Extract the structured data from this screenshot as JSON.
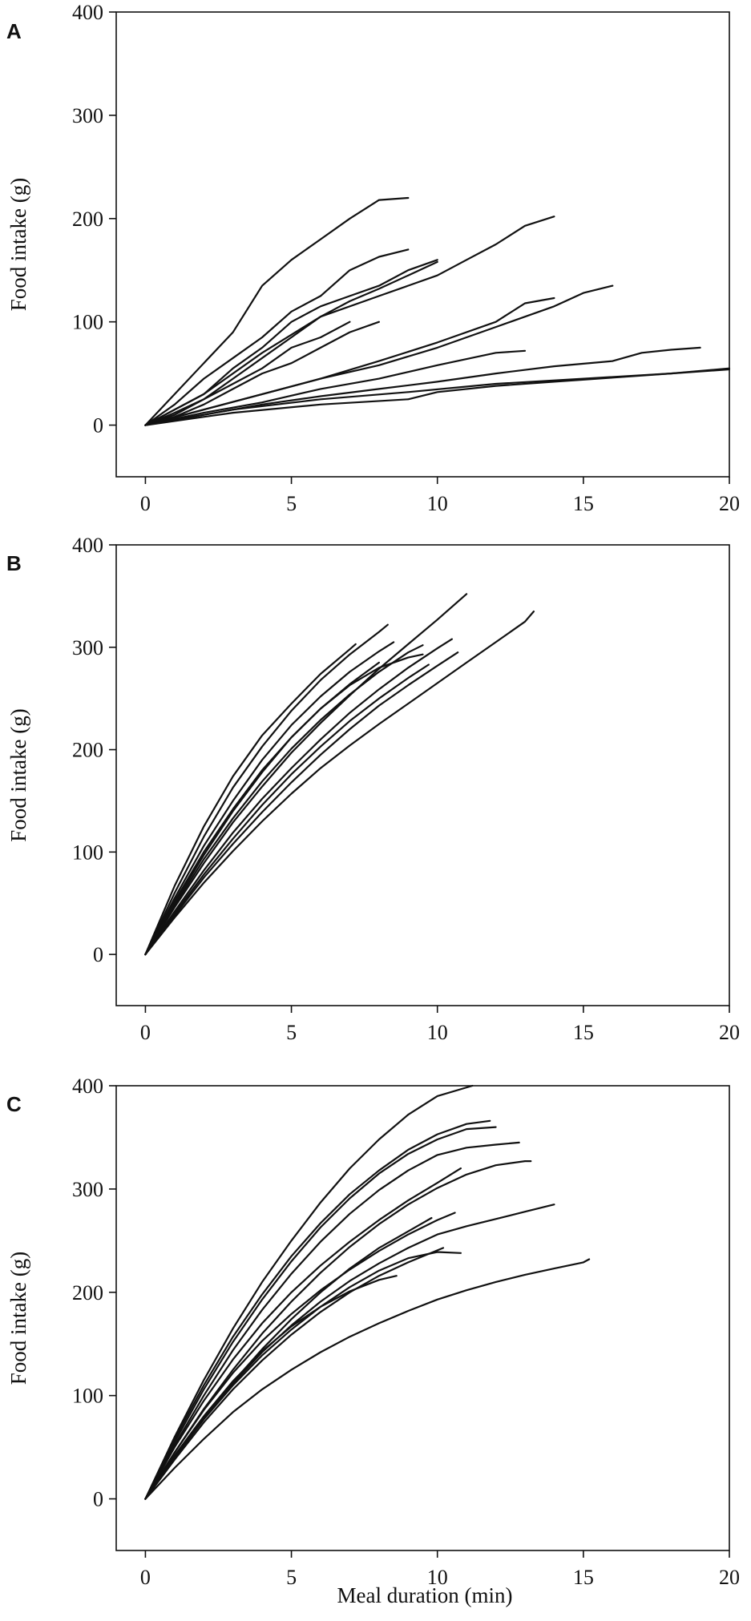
{
  "figure": {
    "xlabel": "Meal duration (min)"
  },
  "chart_data": [
    {
      "panel": "A",
      "type": "line",
      "xlabel": "Meal duration (min)",
      "ylabel": "Food intake (g)",
      "xlim": [
        -1,
        20
      ],
      "ylim": [
        -50,
        400
      ],
      "xticks": [
        0,
        5,
        10,
        15,
        20
      ],
      "yticks": [
        0,
        100,
        200,
        300,
        400
      ],
      "grid": false,
      "legend": "none",
      "series": [
        {
          "x": [
            0,
            1,
            2,
            3,
            4,
            5,
            6,
            7,
            8,
            9
          ],
          "y": [
            0,
            30,
            60,
            90,
            135,
            160,
            180,
            200,
            218,
            220
          ]
        },
        {
          "x": [
            0,
            1,
            2,
            3,
            4,
            5,
            6,
            7,
            8,
            9
          ],
          "y": [
            0,
            20,
            45,
            65,
            85,
            110,
            125,
            150,
            163,
            170
          ]
        },
        {
          "x": [
            0,
            1,
            2,
            3,
            4,
            5,
            6,
            7,
            8,
            9,
            10
          ],
          "y": [
            0,
            15,
            30,
            55,
            75,
            100,
            115,
            125,
            135,
            150,
            160
          ]
        },
        {
          "x": [
            0,
            1,
            2,
            3,
            4,
            5,
            6,
            7,
            8,
            9,
            10
          ],
          "y": [
            0,
            10,
            25,
            45,
            65,
            85,
            105,
            120,
            132,
            145,
            158
          ]
        },
        {
          "x": [
            0,
            1,
            2,
            3,
            4,
            5,
            6,
            7
          ],
          "y": [
            0,
            12,
            25,
            40,
            55,
            75,
            85,
            100
          ]
        },
        {
          "x": [
            0,
            1,
            2,
            3,
            4,
            5,
            6,
            7,
            8
          ],
          "y": [
            0,
            8,
            20,
            35,
            50,
            60,
            75,
            90,
            100
          ]
        },
        {
          "x": [
            0,
            2,
            4,
            6,
            8,
            10,
            11,
            12,
            13,
            14
          ],
          "y": [
            0,
            30,
            70,
            105,
            125,
            145,
            160,
            175,
            193,
            202
          ]
        },
        {
          "x": [
            0,
            2,
            4,
            6,
            8,
            10,
            12,
            13,
            14
          ],
          "y": [
            0,
            15,
            30,
            45,
            62,
            80,
            100,
            118,
            123
          ]
        },
        {
          "x": [
            0,
            2,
            4,
            6,
            8,
            10,
            12,
            14,
            15,
            16
          ],
          "y": [
            0,
            15,
            30,
            45,
            58,
            75,
            95,
            115,
            128,
            135
          ]
        },
        {
          "x": [
            0,
            2,
            4,
            6,
            8,
            10,
            12,
            13
          ],
          "y": [
            0,
            12,
            22,
            35,
            45,
            58,
            70,
            72
          ]
        },
        {
          "x": [
            0,
            2,
            4,
            6,
            8,
            10,
            12,
            14,
            16,
            17,
            18,
            19
          ],
          "y": [
            0,
            10,
            20,
            28,
            35,
            42,
            50,
            57,
            62,
            70,
            73,
            75
          ]
        },
        {
          "x": [
            0,
            3,
            6,
            9,
            12,
            15,
            18,
            20
          ],
          "y": [
            0,
            15,
            25,
            32,
            40,
            45,
            50,
            55
          ]
        },
        {
          "x": [
            0,
            3,
            6,
            9,
            10,
            12,
            14,
            16,
            18,
            20
          ],
          "y": [
            0,
            12,
            20,
            25,
            32,
            38,
            42,
            46,
            50,
            54
          ]
        }
      ]
    },
    {
      "panel": "B",
      "type": "line",
      "xlabel": "",
      "ylabel": "Food intake (g)",
      "xlim": [
        -1,
        20
      ],
      "ylim": [
        -50,
        400
      ],
      "xticks": [
        0,
        5,
        10,
        15,
        20
      ],
      "yticks": [
        0,
        100,
        200,
        300,
        400
      ],
      "grid": false,
      "legend": "none",
      "series": [
        {
          "x": [
            0,
            1,
            2,
            3,
            4,
            5,
            6,
            7,
            7.2
          ],
          "y": [
            0,
            67,
            125,
            174,
            214,
            245,
            274,
            298,
            303
          ]
        },
        {
          "x": [
            0,
            1,
            2,
            3,
            4,
            5,
            6,
            7,
            8,
            8.3
          ],
          "y": [
            0,
            60,
            115,
            163,
            203,
            238,
            268,
            293,
            315,
            322
          ]
        },
        {
          "x": [
            0,
            1,
            2,
            3,
            4,
            5,
            6,
            7,
            8,
            8.5
          ],
          "y": [
            0,
            55,
            106,
            150,
            190,
            224,
            252,
            276,
            296,
            305
          ]
        },
        {
          "x": [
            0,
            1,
            2,
            3,
            4,
            5,
            6,
            7,
            8
          ],
          "y": [
            0,
            52,
            100,
            142,
            180,
            212,
            240,
            264,
            285
          ]
        },
        {
          "x": [
            0,
            1,
            2,
            3,
            4,
            5,
            6,
            7,
            8,
            9,
            9.5
          ],
          "y": [
            0,
            48,
            93,
            133,
            169,
            201,
            229,
            254,
            276,
            295,
            302
          ]
        },
        {
          "x": [
            0,
            1,
            2,
            3,
            4,
            5,
            6,
            7,
            8,
            9,
            10,
            11
          ],
          "y": [
            0,
            46,
            89,
            129,
            164,
            197,
            226,
            253,
            279,
            303,
            327,
            352
          ]
        },
        {
          "x": [
            0,
            1,
            2,
            3,
            4,
            5,
            6,
            7,
            8,
            9,
            10,
            10.5
          ],
          "y": [
            0,
            42,
            82,
            119,
            152,
            182,
            210,
            236,
            259,
            280,
            299,
            308
          ]
        },
        {
          "x": [
            0,
            1,
            2,
            3,
            4,
            5,
            6,
            7,
            8,
            9,
            9.7
          ],
          "y": [
            0,
            40,
            78,
            113,
            146,
            176,
            203,
            228,
            250,
            270,
            283
          ]
        },
        {
          "x": [
            0,
            1,
            2,
            3,
            4,
            5,
            6,
            7,
            8,
            9,
            10,
            10.7
          ],
          "y": [
            0,
            38,
            75,
            108,
            139,
            168,
            195,
            220,
            243,
            263,
            282,
            295
          ]
        },
        {
          "x": [
            0,
            1,
            2,
            3,
            4,
            5,
            6,
            7,
            8,
            9,
            10,
            11,
            12,
            13,
            13.3
          ],
          "y": [
            0,
            36,
            70,
            101,
            130,
            157,
            182,
            204,
            225,
            245,
            265,
            285,
            305,
            325,
            335
          ]
        },
        {
          "x": [
            0,
            1,
            2,
            3,
            4,
            5,
            6,
            7,
            8,
            9,
            9.5
          ],
          "y": [
            0,
            50,
            97,
            140,
            178,
            212,
            240,
            263,
            280,
            290,
            293
          ]
        }
      ]
    },
    {
      "panel": "C",
      "type": "line",
      "xlabel": "Meal duration (min)",
      "ylabel": "Food intake (g)",
      "xlim": [
        -1,
        20
      ],
      "ylim": [
        -50,
        400
      ],
      "xticks": [
        0,
        5,
        10,
        15,
        20
      ],
      "yticks": [
        0,
        100,
        200,
        300,
        400
      ],
      "grid": false,
      "legend": "none",
      "series": [
        {
          "x": [
            0,
            1,
            2,
            3,
            4,
            5,
            6,
            7,
            8,
            9,
            10,
            11.2
          ],
          "y": [
            0,
            60,
            115,
            165,
            210,
            250,
            287,
            320,
            348,
            372,
            390,
            400
          ]
        },
        {
          "x": [
            0,
            1,
            2,
            3,
            4,
            5,
            6,
            7,
            8,
            9,
            10,
            11,
            12
          ],
          "y": [
            0,
            55,
            106,
            152,
            193,
            230,
            263,
            291,
            315,
            334,
            348,
            358,
            360
          ]
        },
        {
          "x": [
            0,
            1,
            2,
            3,
            4,
            5,
            6,
            7,
            8,
            9,
            10,
            11,
            11.8
          ],
          "y": [
            0,
            58,
            110,
            157,
            198,
            235,
            267,
            295,
            318,
            338,
            353,
            363,
            366
          ]
        },
        {
          "x": [
            0,
            1,
            2,
            3,
            4,
            5,
            6,
            7,
            8,
            9,
            10,
            11,
            12,
            12.8
          ],
          "y": [
            0,
            52,
            100,
            144,
            183,
            218,
            249,
            276,
            299,
            318,
            333,
            340,
            343,
            345
          ]
        },
        {
          "x": [
            0,
            1,
            2,
            3,
            4,
            5,
            6,
            7,
            8,
            9,
            10,
            11,
            12,
            13,
            13.2
          ],
          "y": [
            0,
            45,
            87,
            125,
            160,
            191,
            219,
            244,
            266,
            285,
            301,
            314,
            323,
            327,
            327
          ]
        },
        {
          "x": [
            0,
            1,
            2,
            3,
            4,
            5,
            6,
            7,
            8,
            9,
            10,
            11,
            12,
            13,
            14
          ],
          "y": [
            0,
            40,
            78,
            112,
            142,
            168,
            191,
            211,
            228,
            243,
            256,
            264,
            271,
            278,
            285
          ]
        },
        {
          "x": [
            0,
            1,
            2,
            3,
            4,
            5,
            6,
            7,
            8,
            9,
            10,
            10.8
          ],
          "y": [
            0,
            50,
            95,
            135,
            170,
            200,
            226,
            249,
            270,
            289,
            306,
            320
          ]
        },
        {
          "x": [
            0,
            1,
            2,
            3,
            4,
            5,
            6,
            7,
            8,
            9,
            10,
            10.6
          ],
          "y": [
            0,
            45,
            86,
            122,
            153,
            179,
            202,
            222,
            240,
            256,
            270,
            277
          ]
        },
        {
          "x": [
            0,
            1,
            2,
            3,
            4,
            5,
            6,
            7,
            8,
            9,
            10,
            10.8
          ],
          "y": [
            0,
            40,
            77,
            110,
            139,
            164,
            186,
            205,
            221,
            233,
            239,
            238
          ]
        },
        {
          "x": [
            0,
            1,
            2,
            3,
            4,
            5,
            6,
            7,
            8,
            9,
            10.2
          ],
          "y": [
            0,
            38,
            74,
            106,
            134,
            159,
            181,
            200,
            216,
            229,
            243
          ]
        },
        {
          "x": [
            0,
            1,
            2,
            3,
            4,
            5,
            6,
            7,
            8,
            8.6
          ],
          "y": [
            0,
            42,
            80,
            114,
            143,
            167,
            186,
            201,
            212,
            216
          ]
        },
        {
          "x": [
            0,
            1,
            2,
            3,
            4,
            5,
            6,
            7,
            8,
            9,
            9.8
          ],
          "y": [
            0,
            40,
            78,
            113,
            145,
            174,
            200,
            223,
            243,
            259,
            272
          ]
        },
        {
          "x": [
            0,
            1,
            2,
            3,
            4,
            5,
            6,
            7,
            8,
            9,
            10,
            11,
            12,
            13,
            14,
            15,
            15.2
          ],
          "y": [
            0,
            30,
            58,
            84,
            106,
            125,
            142,
            157,
            170,
            182,
            193,
            202,
            210,
            217,
            223,
            229,
            232
          ]
        }
      ]
    }
  ]
}
